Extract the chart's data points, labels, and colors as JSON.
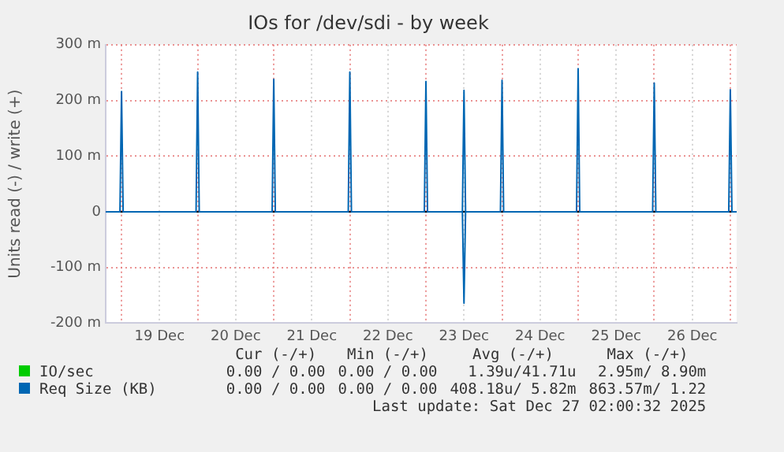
{
  "chart_data": {
    "type": "line",
    "title": "IOs for /dev/sdi - by week",
    "ylabel": "Units read (-) / write (+)",
    "xlim": [
      "2025-12-18T19:00",
      "2025-12-27T02:00"
    ],
    "xticks": [
      {
        "value": "2025-12-19T00:00",
        "label": null
      },
      {
        "value": "2025-12-19T12:00",
        "label": "19 Dec"
      },
      {
        "value": "2025-12-20T00:00",
        "label": null
      },
      {
        "value": "2025-12-20T12:00",
        "label": "20 Dec"
      },
      {
        "value": "2025-12-21T00:00",
        "label": null
      },
      {
        "value": "2025-12-21T12:00",
        "label": "21 Dec"
      },
      {
        "value": "2025-12-22T00:00",
        "label": null
      },
      {
        "value": "2025-12-22T12:00",
        "label": "22 Dec"
      },
      {
        "value": "2025-12-23T00:00",
        "label": null
      },
      {
        "value": "2025-12-23T12:00",
        "label": "23 Dec"
      },
      {
        "value": "2025-12-24T00:00",
        "label": null
      },
      {
        "value": "2025-12-24T12:00",
        "label": "24 Dec"
      },
      {
        "value": "2025-12-25T00:00",
        "label": null
      },
      {
        "value": "2025-12-25T12:00",
        "label": "25 Dec"
      },
      {
        "value": "2025-12-26T00:00",
        "label": null
      },
      {
        "value": "2025-12-26T12:00",
        "label": "26 Dec"
      },
      {
        "value": "2025-12-27T00:00",
        "label": null
      }
    ],
    "ylim": [
      -200,
      300
    ],
    "yticks": [
      {
        "value": -200,
        "label": "-200 m"
      },
      {
        "value": -100,
        "label": "-100 m"
      },
      0,
      {
        "value": 100,
        "label": "100 m"
      },
      {
        "value": 200,
        "label": "200 m"
      },
      {
        "value": 300,
        "label": "300 m"
      }
    ],
    "grid": true,
    "legend": "bottom",
    "marker": "none",
    "series": [
      {
        "name": "IO/sec",
        "color": "#00cc00"
      },
      {
        "name": "Req Size (KB)",
        "color": "#0066b3",
        "x": [
          "2025-12-18T19:00",
          "2025-12-18T23:30",
          "2025-12-19T00:00",
          "2025-12-19T00:30",
          "2025-12-19T23:30",
          "2025-12-20T00:00",
          "2025-12-20T00:30",
          "2025-12-20T23:30",
          "2025-12-21T00:00",
          "2025-12-21T00:30",
          "2025-12-21T23:30",
          "2025-12-22T00:00",
          "2025-12-22T00:30",
          "2025-12-22T23:30",
          "2025-12-23T00:00",
          "2025-12-23T00:30",
          "2025-12-23T11:30",
          "2025-12-23T12:00",
          "2025-12-23T12:30",
          "2025-12-23T23:30",
          "2025-12-24T00:00",
          "2025-12-24T00:30",
          "2025-12-24T23:30",
          "2025-12-25T00:00",
          "2025-12-25T00:30",
          "2025-12-25T23:30",
          "2025-12-26T00:00",
          "2025-12-26T00:30",
          "2025-12-26T23:30",
          "2025-12-27T00:00",
          "2025-12-27T00:30",
          "2025-12-27T02:00"
        ],
        "values": [
          0,
          0,
          216,
          0,
          0,
          251,
          0,
          0,
          238,
          0,
          0,
          251,
          0,
          0,
          234,
          0,
          0,
          218,
          0,
          0,
          236,
          0,
          0,
          257,
          0,
          0,
          231,
          0,
          0,
          219,
          0,
          0
        ]
      },
      {
        "color": "#0066b3",
        "x": [
          "2025-12-23T11:30",
          "2025-12-23T12:00",
          "2025-12-23T12:30"
        ],
        "values": [
          0,
          -164,
          0
        ]
      }
    ],
    "annotations": [
      "Cur (-/+)",
      "Min (-/+)",
      "Avg (-/+)",
      "Max (-/+)",
      "0.00 / 0.00",
      "0.00 / 0.00",
      "1.39u/41.71u",
      "2.95m/ 8.90m",
      "0.00 / 0.00",
      "0.00 / 0.00",
      "408.18u/ 5.82m",
      "863.57m/ 1.22",
      "Last update: Sat Dec 27 02:00:32 2025"
    ]
  }
}
